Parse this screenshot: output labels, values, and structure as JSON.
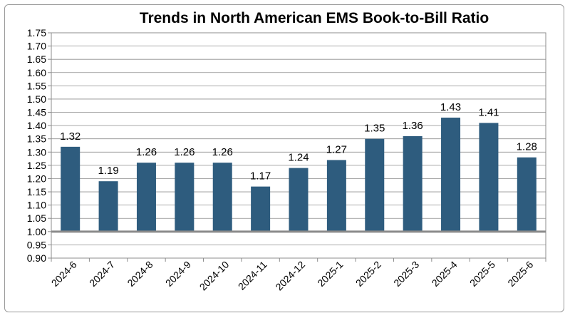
{
  "chart_data": {
    "type": "bar",
    "title": "Trends in North American EMS Book-to-Bill Ratio",
    "xlabel": "",
    "ylabel": "",
    "categories": [
      "2024-6",
      "2024-7",
      "2024-8",
      "2024-9",
      "2024-10",
      "2024-11",
      "2024-12",
      "2025-1",
      "2025-2",
      "2025-3",
      "2025-4",
      "2025-5",
      "2025-6"
    ],
    "values": [
      1.32,
      1.19,
      1.26,
      1.26,
      1.26,
      1.17,
      1.24,
      1.27,
      1.35,
      1.36,
      1.43,
      1.41,
      1.28
    ],
    "data_labels": [
      "1.32",
      "1.19",
      "1.26",
      "1.26",
      "1.26",
      "1.17",
      "1.24",
      "1.27",
      "1.35",
      "1.36",
      "1.43",
      "1.41",
      "1.28"
    ],
    "ylim": [
      0.9,
      1.75
    ],
    "yticks": [
      "0.90",
      "0.95",
      "1.00",
      "1.05",
      "1.10",
      "1.15",
      "1.20",
      "1.25",
      "1.30",
      "1.35",
      "1.40",
      "1.45",
      "1.50",
      "1.55",
      "1.60",
      "1.65",
      "1.70",
      "1.75"
    ],
    "baseline": 1.0,
    "grid": true,
    "legend": "none",
    "colors": {
      "bar": "#2e5c7e",
      "grid": "#8c8c8c",
      "baseline": "#8a8a8a",
      "axis": "#8c8c8c"
    }
  }
}
